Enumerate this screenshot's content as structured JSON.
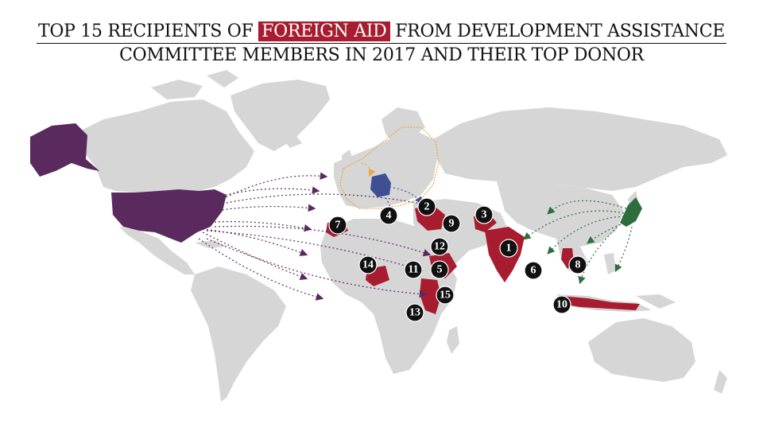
{
  "title": {
    "part1": "TOP 15 RECIPIENTS OF",
    "highlight": "FOREIGN AID",
    "part2": "FROM DEVELOPMENT ASSISTANCE",
    "line2": "COMMITTEE MEMBERS IN 2017 AND THEIR TOP DONOR"
  },
  "colors": {
    "land": "#d6d6d6",
    "recipient": "#a81c2f",
    "usa": "#5a2a5e",
    "germany": "#3e4f93",
    "europe_outline": "#f0a548",
    "japan": "#2e6e3e",
    "marker": "#111111"
  },
  "recipients": [
    {
      "rank": "1",
      "country": "india"
    },
    {
      "rank": "2",
      "country": "syria"
    },
    {
      "rank": "3",
      "country": "afghanistan"
    },
    {
      "rank": "4",
      "country": "turkey"
    },
    {
      "rank": "5",
      "country": "ethiopia"
    },
    {
      "rank": "6",
      "country": "bangladesh"
    },
    {
      "rank": "7",
      "country": "morocco"
    },
    {
      "rank": "8",
      "country": "vietnam"
    },
    {
      "rank": "9",
      "country": "iraq"
    },
    {
      "rank": "10",
      "country": "indonesia"
    },
    {
      "rank": "11",
      "country": "south-sudan"
    },
    {
      "rank": "12",
      "country": "jordan"
    },
    {
      "rank": "13",
      "country": "tanzania"
    },
    {
      "rank": "14",
      "country": "nigeria"
    },
    {
      "rank": "15",
      "country": "kenya"
    }
  ]
}
